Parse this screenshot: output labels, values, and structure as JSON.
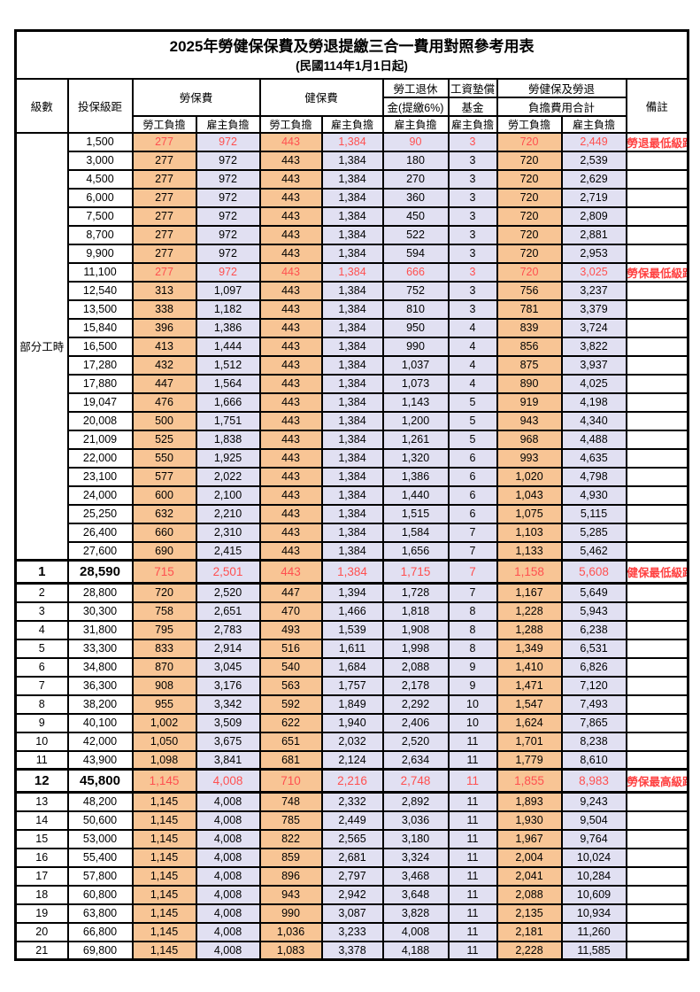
{
  "page": {
    "title": "2025年勞健保保費及勞退提繳三合一費用對照參考用表",
    "subtitle": "(民國114年1月1日起)"
  },
  "colors": {
    "employee_bg": "#F8C595",
    "employer_bg": "#E1E0F2",
    "highlight_text": "#FF5050",
    "remark_text": "#FF4040",
    "border": "#000000"
  },
  "header": {
    "level": "級數",
    "bracket": "投保級距",
    "labor_fee": "勞保費",
    "health_fee": "健保費",
    "pension_line1": "勞工退休",
    "pension_line2": "金(提繳6%)",
    "wage_fund_line1": "工資墊償",
    "wage_fund_line2": "基金",
    "total_line1": "勞健保及勞退",
    "total_line2": "負擔費用合計",
    "remark": "備註",
    "employee_share": "勞工負擔",
    "employer_share": "雇主負擔"
  },
  "table": {
    "part_time_label": "部分工時",
    "part_time_rowspan": 23,
    "rows": [
      {
        "level": "",
        "bracket": "1,500",
        "fees": [
          "277",
          "972",
          "443",
          "1,384",
          "90",
          "3",
          "720",
          "2,449"
        ],
        "remark": "勞退最低級距",
        "highlight": true,
        "big": false
      },
      {
        "level": "",
        "bracket": "3,000",
        "fees": [
          "277",
          "972",
          "443",
          "1,384",
          "180",
          "3",
          "720",
          "2,539"
        ],
        "remark": "",
        "highlight": false,
        "big": false
      },
      {
        "level": "",
        "bracket": "4,500",
        "fees": [
          "277",
          "972",
          "443",
          "1,384",
          "270",
          "3",
          "720",
          "2,629"
        ],
        "remark": "",
        "highlight": false,
        "big": false
      },
      {
        "level": "",
        "bracket": "6,000",
        "fees": [
          "277",
          "972",
          "443",
          "1,384",
          "360",
          "3",
          "720",
          "2,719"
        ],
        "remark": "",
        "highlight": false,
        "big": false
      },
      {
        "level": "",
        "bracket": "7,500",
        "fees": [
          "277",
          "972",
          "443",
          "1,384",
          "450",
          "3",
          "720",
          "2,809"
        ],
        "remark": "",
        "highlight": false,
        "big": false
      },
      {
        "level": "",
        "bracket": "8,700",
        "fees": [
          "277",
          "972",
          "443",
          "1,384",
          "522",
          "3",
          "720",
          "2,881"
        ],
        "remark": "",
        "highlight": false,
        "big": false
      },
      {
        "level": "",
        "bracket": "9,900",
        "fees": [
          "277",
          "972",
          "443",
          "1,384",
          "594",
          "3",
          "720",
          "2,953"
        ],
        "remark": "",
        "highlight": false,
        "big": false
      },
      {
        "level": "",
        "bracket": "11,100",
        "fees": [
          "277",
          "972",
          "443",
          "1,384",
          "666",
          "3",
          "720",
          "3,025"
        ],
        "remark": "勞保最低級距",
        "highlight": true,
        "big": false
      },
      {
        "level": "",
        "bracket": "12,540",
        "fees": [
          "313",
          "1,097",
          "443",
          "1,384",
          "752",
          "3",
          "756",
          "3,237"
        ],
        "remark": "",
        "highlight": false,
        "big": false
      },
      {
        "level": "",
        "bracket": "13,500",
        "fees": [
          "338",
          "1,182",
          "443",
          "1,384",
          "810",
          "3",
          "781",
          "3,379"
        ],
        "remark": "",
        "highlight": false,
        "big": false
      },
      {
        "level": "",
        "bracket": "15,840",
        "fees": [
          "396",
          "1,386",
          "443",
          "1,384",
          "950",
          "4",
          "839",
          "3,724"
        ],
        "remark": "",
        "highlight": false,
        "big": false
      },
      {
        "level": "",
        "bracket": "16,500",
        "fees": [
          "413",
          "1,444",
          "443",
          "1,384",
          "990",
          "4",
          "856",
          "3,822"
        ],
        "remark": "",
        "highlight": false,
        "big": false
      },
      {
        "level": "",
        "bracket": "17,280",
        "fees": [
          "432",
          "1,512",
          "443",
          "1,384",
          "1,037",
          "4",
          "875",
          "3,937"
        ],
        "remark": "",
        "highlight": false,
        "big": false
      },
      {
        "level": "",
        "bracket": "17,880",
        "fees": [
          "447",
          "1,564",
          "443",
          "1,384",
          "1,073",
          "4",
          "890",
          "4,025"
        ],
        "remark": "",
        "highlight": false,
        "big": false
      },
      {
        "level": "",
        "bracket": "19,047",
        "fees": [
          "476",
          "1,666",
          "443",
          "1,384",
          "1,143",
          "5",
          "919",
          "4,198"
        ],
        "remark": "",
        "highlight": false,
        "big": false
      },
      {
        "level": "",
        "bracket": "20,008",
        "fees": [
          "500",
          "1,751",
          "443",
          "1,384",
          "1,200",
          "5",
          "943",
          "4,340"
        ],
        "remark": "",
        "highlight": false,
        "big": false
      },
      {
        "level": "",
        "bracket": "21,009",
        "fees": [
          "525",
          "1,838",
          "443",
          "1,384",
          "1,261",
          "5",
          "968",
          "4,488"
        ],
        "remark": "",
        "highlight": false,
        "big": false
      },
      {
        "level": "",
        "bracket": "22,000",
        "fees": [
          "550",
          "1,925",
          "443",
          "1,384",
          "1,320",
          "6",
          "993",
          "4,635"
        ],
        "remark": "",
        "highlight": false,
        "big": false
      },
      {
        "level": "",
        "bracket": "23,100",
        "fees": [
          "577",
          "2,022",
          "443",
          "1,384",
          "1,386",
          "6",
          "1,020",
          "4,798"
        ],
        "remark": "",
        "highlight": false,
        "big": false
      },
      {
        "level": "",
        "bracket": "24,000",
        "fees": [
          "600",
          "2,100",
          "443",
          "1,384",
          "1,440",
          "6",
          "1,043",
          "4,930"
        ],
        "remark": "",
        "highlight": false,
        "big": false
      },
      {
        "level": "",
        "bracket": "25,250",
        "fees": [
          "632",
          "2,210",
          "443",
          "1,384",
          "1,515",
          "6",
          "1,075",
          "5,115"
        ],
        "remark": "",
        "highlight": false,
        "big": false
      },
      {
        "level": "",
        "bracket": "26,400",
        "fees": [
          "660",
          "2,310",
          "443",
          "1,384",
          "1,584",
          "7",
          "1,103",
          "5,285"
        ],
        "remark": "",
        "highlight": false,
        "big": false
      },
      {
        "level": "",
        "bracket": "27,600",
        "fees": [
          "690",
          "2,415",
          "443",
          "1,384",
          "1,656",
          "7",
          "1,133",
          "5,462"
        ],
        "remark": "",
        "highlight": false,
        "big": false
      },
      {
        "level": "1",
        "bracket": "28,590",
        "fees": [
          "715",
          "2,501",
          "443",
          "1,384",
          "1,715",
          "7",
          "1,158",
          "5,608"
        ],
        "remark": "健保最低級距",
        "highlight": true,
        "big": true
      },
      {
        "level": "2",
        "bracket": "28,800",
        "fees": [
          "720",
          "2,520",
          "447",
          "1,394",
          "1,728",
          "7",
          "1,167",
          "5,649"
        ],
        "remark": "",
        "highlight": false,
        "big": false
      },
      {
        "level": "3",
        "bracket": "30,300",
        "fees": [
          "758",
          "2,651",
          "470",
          "1,466",
          "1,818",
          "8",
          "1,228",
          "5,943"
        ],
        "remark": "",
        "highlight": false,
        "big": false
      },
      {
        "level": "4",
        "bracket": "31,800",
        "fees": [
          "795",
          "2,783",
          "493",
          "1,539",
          "1,908",
          "8",
          "1,288",
          "6,238"
        ],
        "remark": "",
        "highlight": false,
        "big": false
      },
      {
        "level": "5",
        "bracket": "33,300",
        "fees": [
          "833",
          "2,914",
          "516",
          "1,611",
          "1,998",
          "8",
          "1,349",
          "6,531"
        ],
        "remark": "",
        "highlight": false,
        "big": false
      },
      {
        "level": "6",
        "bracket": "34,800",
        "fees": [
          "870",
          "3,045",
          "540",
          "1,684",
          "2,088",
          "9",
          "1,410",
          "6,826"
        ],
        "remark": "",
        "highlight": false,
        "big": false
      },
      {
        "level": "7",
        "bracket": "36,300",
        "fees": [
          "908",
          "3,176",
          "563",
          "1,757",
          "2,178",
          "9",
          "1,471",
          "7,120"
        ],
        "remark": "",
        "highlight": false,
        "big": false
      },
      {
        "level": "8",
        "bracket": "38,200",
        "fees": [
          "955",
          "3,342",
          "592",
          "1,849",
          "2,292",
          "10",
          "1,547",
          "7,493"
        ],
        "remark": "",
        "highlight": false,
        "big": false
      },
      {
        "level": "9",
        "bracket": "40,100",
        "fees": [
          "1,002",
          "3,509",
          "622",
          "1,940",
          "2,406",
          "10",
          "1,624",
          "7,865"
        ],
        "remark": "",
        "highlight": false,
        "big": false
      },
      {
        "level": "10",
        "bracket": "42,000",
        "fees": [
          "1,050",
          "3,675",
          "651",
          "2,032",
          "2,520",
          "11",
          "1,701",
          "8,238"
        ],
        "remark": "",
        "highlight": false,
        "big": false
      },
      {
        "level": "11",
        "bracket": "43,900",
        "fees": [
          "1,098",
          "3,841",
          "681",
          "2,124",
          "2,634",
          "11",
          "1,779",
          "8,610"
        ],
        "remark": "",
        "highlight": false,
        "big": false
      },
      {
        "level": "12",
        "bracket": "45,800",
        "fees": [
          "1,145",
          "4,008",
          "710",
          "2,216",
          "2,748",
          "11",
          "1,855",
          "8,983"
        ],
        "remark": "勞保最高級距",
        "highlight": true,
        "big": true
      },
      {
        "level": "13",
        "bracket": "48,200",
        "fees": [
          "1,145",
          "4,008",
          "748",
          "2,332",
          "2,892",
          "11",
          "1,893",
          "9,243"
        ],
        "remark": "",
        "highlight": false,
        "big": false
      },
      {
        "level": "14",
        "bracket": "50,600",
        "fees": [
          "1,145",
          "4,008",
          "785",
          "2,449",
          "3,036",
          "11",
          "1,930",
          "9,504"
        ],
        "remark": "",
        "highlight": false,
        "big": false
      },
      {
        "level": "15",
        "bracket": "53,000",
        "fees": [
          "1,145",
          "4,008",
          "822",
          "2,565",
          "3,180",
          "11",
          "1,967",
          "9,764"
        ],
        "remark": "",
        "highlight": false,
        "big": false
      },
      {
        "level": "16",
        "bracket": "55,400",
        "fees": [
          "1,145",
          "4,008",
          "859",
          "2,681",
          "3,324",
          "11",
          "2,004",
          "10,024"
        ],
        "remark": "",
        "highlight": false,
        "big": false
      },
      {
        "level": "17",
        "bracket": "57,800",
        "fees": [
          "1,145",
          "4,008",
          "896",
          "2,797",
          "3,468",
          "11",
          "2,041",
          "10,284"
        ],
        "remark": "",
        "highlight": false,
        "big": false
      },
      {
        "level": "18",
        "bracket": "60,800",
        "fees": [
          "1,145",
          "4,008",
          "943",
          "2,942",
          "3,648",
          "11",
          "2,088",
          "10,609"
        ],
        "remark": "",
        "highlight": false,
        "big": false
      },
      {
        "level": "19",
        "bracket": "63,800",
        "fees": [
          "1,145",
          "4,008",
          "990",
          "3,087",
          "3,828",
          "11",
          "2,135",
          "10,934"
        ],
        "remark": "",
        "highlight": false,
        "big": false
      },
      {
        "level": "20",
        "bracket": "66,800",
        "fees": [
          "1,145",
          "4,008",
          "1,036",
          "3,233",
          "4,008",
          "11",
          "2,181",
          "11,260"
        ],
        "remark": "",
        "highlight": false,
        "big": false
      },
      {
        "level": "21",
        "bracket": "69,800",
        "fees": [
          "1,145",
          "4,008",
          "1,083",
          "3,378",
          "4,188",
          "11",
          "2,228",
          "11,585"
        ],
        "remark": "",
        "highlight": false,
        "big": false
      }
    ]
  }
}
